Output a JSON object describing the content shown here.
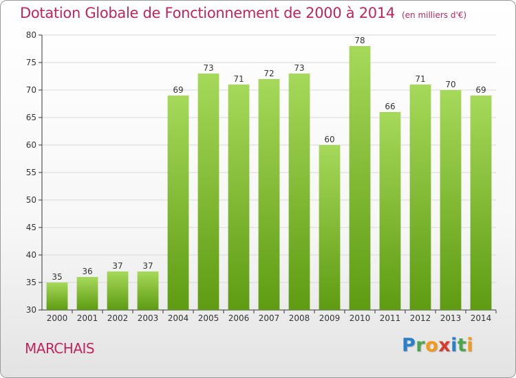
{
  "header": {
    "title": "Dotation Globale de Fonctionnement de 2000 à 2014",
    "unit": "(en milliers d'€)"
  },
  "footer": {
    "commune": "MARCHAIS",
    "logo_letters": [
      "P",
      "r",
      "o",
      "x",
      "i",
      "t",
      "i"
    ]
  },
  "colors": {
    "bar_light": "#a6d95a",
    "bar_dark": "#5e9b12",
    "title": "#c0245c",
    "grid": "#d8d8d8",
    "axis": "#333333"
  },
  "chart_data": {
    "type": "bar",
    "title": "Dotation Globale de Fonctionnement de 2000 à 2014",
    "subtitle": "(en milliers d'€)",
    "xlabel": "",
    "ylabel": "",
    "ylim": [
      30,
      80
    ],
    "yticks": [
      30,
      35,
      40,
      45,
      50,
      55,
      60,
      65,
      70,
      75,
      80
    ],
    "grid": true,
    "categories": [
      "2000",
      "2001",
      "2002",
      "2003",
      "2004",
      "2005",
      "2006",
      "2007",
      "2008",
      "2009",
      "2010",
      "2011",
      "2012",
      "2013",
      "2014"
    ],
    "values": [
      35,
      36,
      37,
      37,
      69,
      73,
      71,
      72,
      73,
      60,
      78,
      66,
      71,
      70,
      69
    ]
  }
}
